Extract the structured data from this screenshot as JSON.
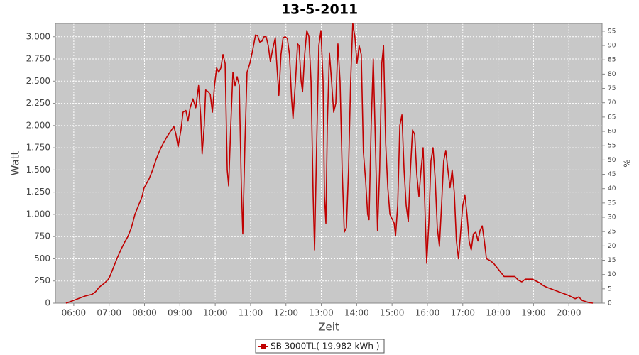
{
  "chart_data": {
    "type": "line",
    "title": "13-5-2011",
    "x_label": "Zeit",
    "y_label": "Watt",
    "y2_label": "%",
    "xlim": [
      5.48,
      20.94
    ],
    "ylim": [
      0,
      3150
    ],
    "y2lim": [
      0,
      97.7
    ],
    "xticks": [
      {
        "value": 6,
        "label": "06:00"
      },
      {
        "value": 7,
        "label": "07:00"
      },
      {
        "value": 8,
        "label": "08:00"
      },
      {
        "value": 9,
        "label": "09:00"
      },
      {
        "value": 10,
        "label": "10:00"
      },
      {
        "value": 11,
        "label": "11:00"
      },
      {
        "value": 12,
        "label": "12:00"
      },
      {
        "value": 13,
        "label": "13:00"
      },
      {
        "value": 14,
        "label": "14:00"
      },
      {
        "value": 15,
        "label": "15:00"
      },
      {
        "value": 16,
        "label": "16:00"
      },
      {
        "value": 17,
        "label": "17:00"
      },
      {
        "value": 18,
        "label": "18:00"
      },
      {
        "value": 19,
        "label": "19:00"
      },
      {
        "value": 20,
        "label": "20:00"
      }
    ],
    "yticks": [
      0,
      250,
      500,
      750,
      {
        "value": 1000,
        "label": "1.000"
      },
      {
        "value": 1250,
        "label": "1.250"
      },
      {
        "value": 1500,
        "label": "1.500"
      },
      {
        "value": 1750,
        "label": "1.750"
      },
      {
        "value": 2000,
        "label": "2.000"
      },
      {
        "value": 2250,
        "label": "2.250"
      },
      {
        "value": 2500,
        "label": "2.500"
      },
      {
        "value": 2750,
        "label": "2.750"
      },
      {
        "value": 3000,
        "label": "3.000"
      }
    ],
    "y2ticks": [
      0,
      5,
      10,
      15,
      20,
      25,
      30,
      35,
      40,
      45,
      50,
      55,
      60,
      65,
      70,
      75,
      80,
      85,
      90,
      95
    ],
    "grid": true,
    "legend": "bottom",
    "series": [
      {
        "name": "SB 3000TL( 19,982 kWh )",
        "color": "#c00000",
        "x": [
          5.78,
          5.92,
          6.12,
          6.32,
          6.52,
          6.62,
          6.72,
          6.88,
          6.96,
          7.02,
          7.12,
          7.22,
          7.33,
          7.43,
          7.53,
          7.63,
          7.73,
          7.83,
          7.93,
          7.99,
          8.13,
          8.23,
          8.33,
          8.43,
          8.53,
          8.63,
          8.73,
          8.83,
          8.89,
          8.95,
          9.03,
          9.09,
          9.17,
          9.23,
          9.29,
          9.37,
          9.45,
          9.53,
          9.59,
          9.63,
          9.69,
          9.73,
          9.8,
          9.86,
          9.92,
          9.98,
          10.04,
          10.1,
          10.16,
          10.22,
          10.28,
          10.34,
          10.38,
          10.44,
          10.5,
          10.56,
          10.62,
          10.68,
          10.74,
          10.78,
          10.84,
          10.9,
          10.98,
          11.06,
          11.14,
          11.2,
          11.26,
          11.32,
          11.38,
          11.44,
          11.5,
          11.56,
          11.62,
          11.7,
          11.74,
          11.8,
          11.86,
          11.92,
          11.98,
          12.04,
          12.1,
          12.16,
          12.2,
          12.27,
          12.33,
          12.37,
          12.43,
          12.47,
          12.53,
          12.59,
          12.65,
          12.71,
          12.77,
          12.81,
          12.87,
          12.93,
          12.99,
          13.05,
          13.09,
          13.13,
          13.17,
          13.23,
          13.29,
          13.35,
          13.41,
          13.47,
          13.53,
          13.59,
          13.65,
          13.71,
          13.77,
          13.83,
          13.89,
          13.95,
          14.01,
          14.07,
          14.13,
          14.19,
          14.25,
          14.31,
          14.35,
          14.41,
          14.47,
          14.53,
          14.59,
          14.65,
          14.71,
          14.76,
          14.82,
          14.88,
          14.94,
          15.0,
          15.06,
          15.1,
          15.16,
          15.22,
          15.28,
          15.34,
          15.4,
          15.46,
          15.52,
          15.58,
          15.64,
          15.7,
          15.76,
          15.82,
          15.88,
          15.92,
          15.98,
          16.04,
          16.1,
          16.16,
          16.22,
          16.28,
          16.34,
          16.4,
          16.46,
          16.52,
          16.58,
          16.64,
          16.7,
          16.76,
          16.82,
          16.88,
          16.94,
          17.0,
          17.06,
          17.12,
          17.18,
          17.24,
          17.3,
          17.37,
          17.43,
          17.49,
          17.55,
          17.61,
          17.67,
          17.77,
          17.87,
          17.97,
          18.07,
          18.17,
          18.37,
          18.47,
          18.57,
          18.67,
          18.77,
          18.97,
          19.17,
          19.27,
          19.37,
          19.57,
          19.77,
          19.98,
          20.08,
          20.18,
          20.28,
          20.38,
          20.58,
          20.68
        ],
        "values": [
          0,
          20,
          50,
          80,
          100,
          130,
          180,
          230,
          260,
          300,
          400,
          500,
          600,
          680,
          750,
          850,
          1000,
          1100,
          1200,
          1300,
          1400,
          1500,
          1620,
          1720,
          1800,
          1870,
          1930,
          1990,
          1900,
          1760,
          1950,
          2150,
          2170,
          2050,
          2200,
          2300,
          2200,
          2450,
          2100,
          1680,
          2000,
          2400,
          2380,
          2350,
          2150,
          2450,
          2650,
          2600,
          2650,
          2800,
          2700,
          1500,
          1320,
          2000,
          2600,
          2450,
          2550,
          2450,
          1300,
          780,
          1800,
          2600,
          2700,
          2850,
          3020,
          3010,
          2940,
          2950,
          3000,
          3000,
          2900,
          2720,
          2850,
          2990,
          2700,
          2340,
          2800,
          2990,
          3000,
          2980,
          2800,
          2300,
          2080,
          2500,
          2920,
          2900,
          2500,
          2380,
          2800,
          3070,
          3000,
          2500,
          1200,
          600,
          1800,
          2900,
          3070,
          2500,
          1200,
          900,
          2000,
          2820,
          2500,
          2150,
          2250,
          2920,
          2500,
          1500,
          800,
          850,
          1500,
          2500,
          3150,
          3000,
          2700,
          2900,
          2800,
          1700,
          1400,
          1000,
          940,
          2000,
          2750,
          1800,
          820,
          1500,
          2700,
          2900,
          1800,
          1300,
          1000,
          950,
          900,
          760,
          1100,
          2000,
          2120,
          1500,
          1100,
          920,
          1500,
          1950,
          1900,
          1450,
          1200,
          1500,
          1750,
          1200,
          450,
          900,
          1600,
          1750,
          1400,
          850,
          640,
          1100,
          1600,
          1720,
          1500,
          1300,
          1500,
          1250,
          700,
          500,
          800,
          1100,
          1220,
          1000,
          700,
          600,
          780,
          800,
          700,
          820,
          870,
          700,
          500,
          480,
          450,
          400,
          350,
          300,
          300,
          300,
          260,
          240,
          270,
          270,
          230,
          200,
          180,
          150,
          120,
          90,
          70,
          50,
          70,
          30,
          5,
          0
        ]
      }
    ]
  }
}
